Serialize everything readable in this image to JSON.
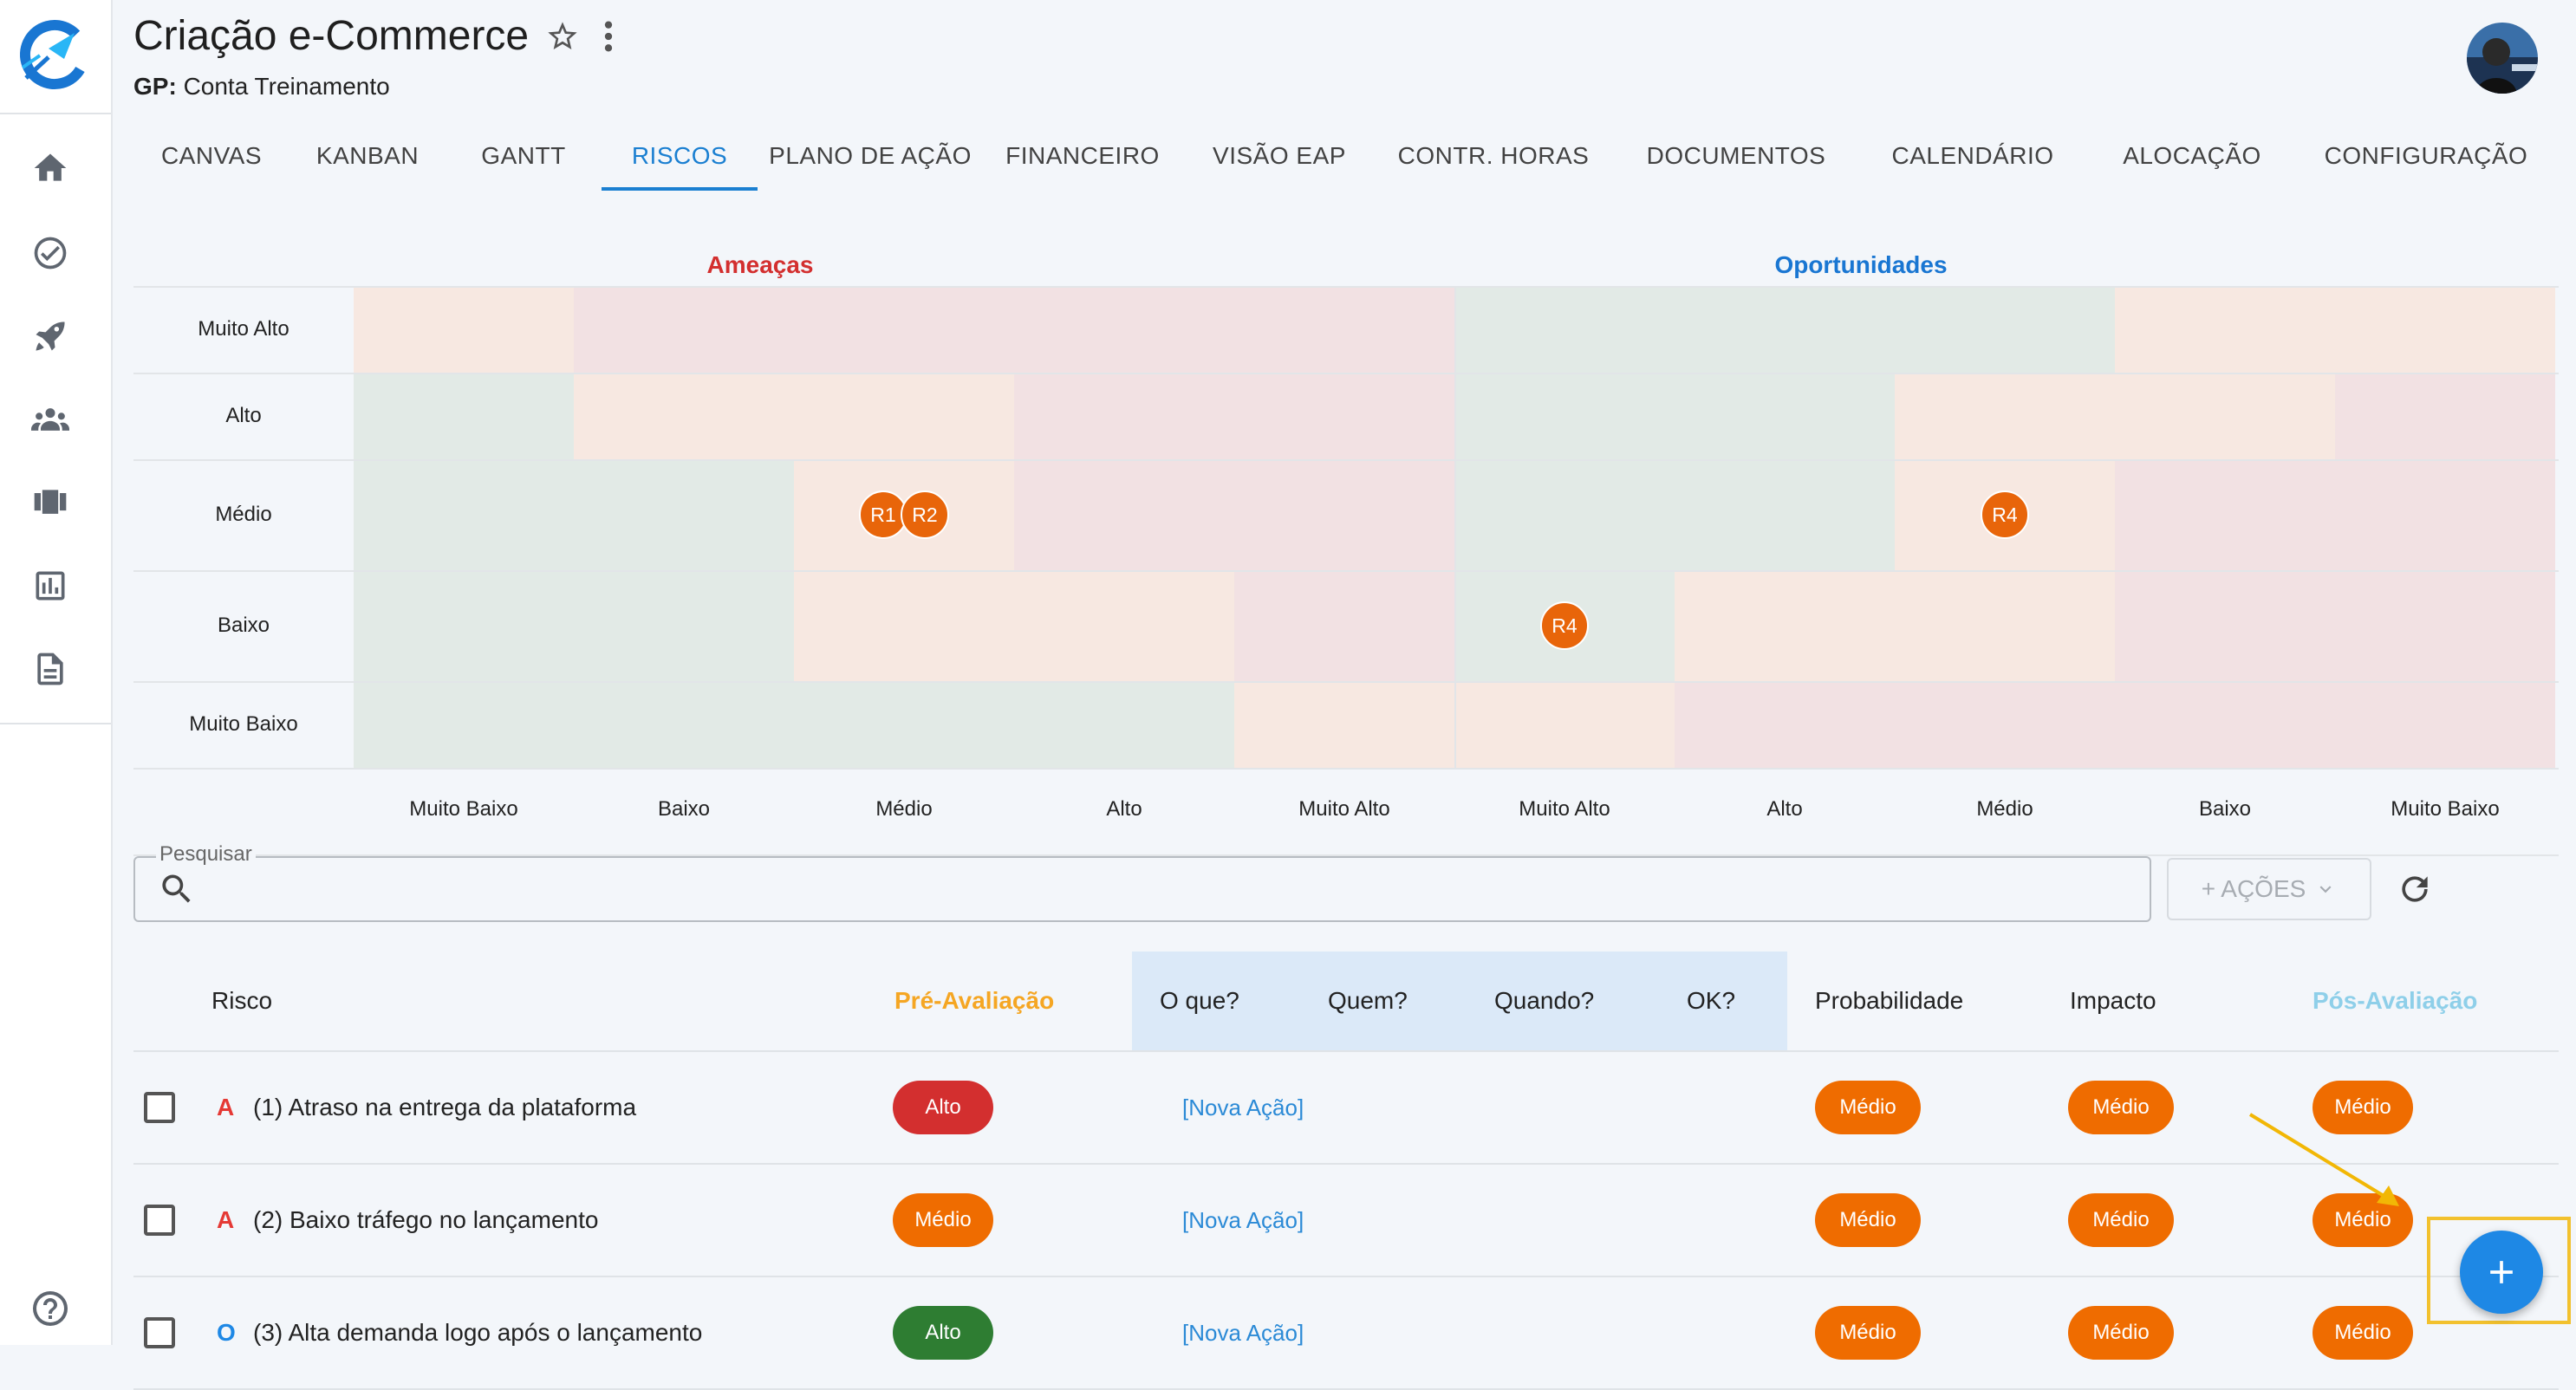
{
  "header": {
    "title": "Criação e-Commerce",
    "gp_label": "GP:",
    "gp_value": "Conta Treinamento"
  },
  "tabs": [
    {
      "label": "CANVAS",
      "active": false
    },
    {
      "label": "KANBAN",
      "active": false
    },
    {
      "label": "GANTT",
      "active": false
    },
    {
      "label": "RISCOS",
      "active": true
    },
    {
      "label": "PLANO DE AÇÃO",
      "active": false
    },
    {
      "label": "FINANCEIRO",
      "active": false
    },
    {
      "label": "VISÃO EAP",
      "active": false
    },
    {
      "label": "CONTR. HORAS",
      "active": false
    },
    {
      "label": "DOCUMENTOS",
      "active": false
    },
    {
      "label": "CALENDÁRIO",
      "active": false
    },
    {
      "label": "ALOCAÇÃO",
      "active": false
    },
    {
      "label": "CONFIGURAÇÃO",
      "active": false
    }
  ],
  "sidebar": {
    "icons": [
      "home-icon",
      "check-circle-icon",
      "rocket-icon",
      "people-icon",
      "carousel-icon",
      "bar-chart-icon",
      "document-icon"
    ],
    "help_icon": "help-icon"
  },
  "matrix": {
    "threats_label": "Ameaças",
    "opportunities_label": "Oportunidades",
    "threats_color": "#d32f2f",
    "opportunities_color": "#1976d2",
    "row_labels": [
      "Muito Alto",
      "Alto",
      "Médio",
      "Baixo",
      "Muito Baixo"
    ],
    "threat_col_labels": [
      "Muito Baixo",
      "Baixo",
      "Médio",
      "Alto",
      "Muito Alto"
    ],
    "opportunity_col_labels": [
      "Muito Alto",
      "Alto",
      "Médio",
      "Baixo",
      "Muito Baixo"
    ],
    "threat_colors": [
      [
        "orange",
        "red",
        "red",
        "red",
        "red"
      ],
      [
        "green",
        "orange",
        "orange",
        "red",
        "red"
      ],
      [
        "green",
        "green",
        "orange",
        "red",
        "red"
      ],
      [
        "green",
        "green",
        "orange",
        "orange",
        "red"
      ],
      [
        "green",
        "green",
        "green",
        "green",
        "orange"
      ]
    ],
    "opportunity_colors": [
      [
        "green",
        "green",
        "green",
        "orange",
        "orange"
      ],
      [
        "green",
        "green",
        "orange",
        "orange",
        "red"
      ],
      [
        "green",
        "green",
        "orange",
        "red",
        "red"
      ],
      [
        "green",
        "orange",
        "orange",
        "red",
        "red"
      ],
      [
        "orange",
        "red",
        "red",
        "red",
        "red"
      ]
    ],
    "palette": {
      "green": "#e2eae6",
      "orange": "#f7e8e1",
      "red": "#f2e1e3"
    },
    "bubbles": [
      {
        "label": "R1",
        "side": "threats",
        "row": 2,
        "col": 2
      },
      {
        "label": "R2",
        "side": "threats",
        "row": 2,
        "col": 2
      },
      {
        "label": "R4",
        "side": "opportunities",
        "row": 2,
        "col": 2
      },
      {
        "label": "R4",
        "side": "opportunities",
        "row": 3,
        "col": 0
      }
    ]
  },
  "search": {
    "label": "Pesquisar",
    "value": ""
  },
  "actions_button": "+ AÇÕES",
  "table": {
    "headers": {
      "risco": "Risco",
      "pre": "Pré-Avaliação",
      "oque": "O que?",
      "quem": "Quem?",
      "quando": "Quando?",
      "ok": "OK?",
      "prob": "Probabilidade",
      "impacto": "Impacto",
      "pos": "Pós-Avaliação"
    },
    "header_colors": {
      "pre": "#f5a623",
      "pos": "#8ecfe9"
    },
    "rows": [
      {
        "type": "A",
        "type_color": "#e53935",
        "name": "(1) Atraso na entrega da plataforma",
        "pre": "Alto",
        "pre_color": "#d32f2f",
        "action": "[Nova Ação]",
        "prob": "Médio",
        "impacto": "Médio",
        "pos": "Médio"
      },
      {
        "type": "A",
        "type_color": "#e53935",
        "name": "(2) Baixo tráfego no lançamento",
        "pre": "Médio",
        "pre_color": "#ef6c00",
        "action": "[Nova Ação]",
        "prob": "Médio",
        "impacto": "Médio",
        "pos": "Médio"
      },
      {
        "type": "O",
        "type_color": "#1e88e5",
        "name": "(3) Alta demanda logo após o lançamento",
        "pre": "Alto",
        "pre_color": "#2e7d32",
        "action": "[Nova Ação]",
        "prob": "Médio",
        "impacto": "Médio",
        "pos": "Médio"
      }
    ],
    "pill_color": "#ef6c00"
  },
  "fab": {
    "icon": "plus-icon",
    "color": "#1e88e5"
  }
}
